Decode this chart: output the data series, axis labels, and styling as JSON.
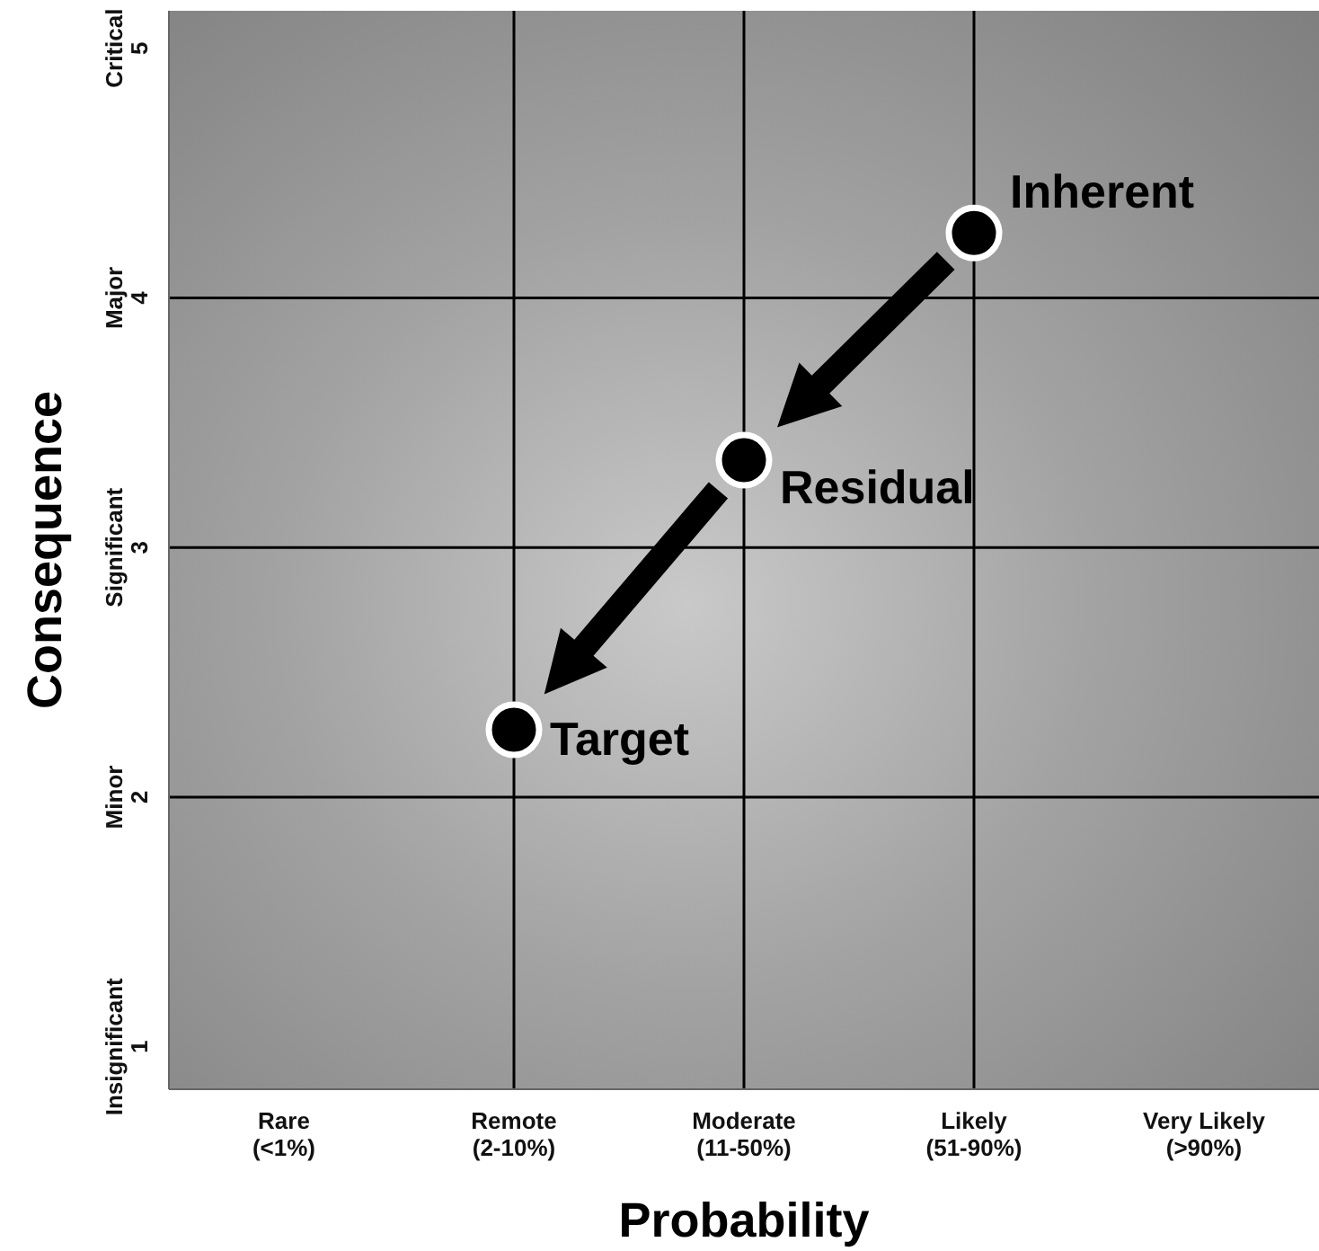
{
  "chart_data": {
    "type": "scatter",
    "xlabel": "Probability",
    "ylabel": "Consequence",
    "marker": "circle",
    "categories": [
      "Rare\n(<1%)",
      "Remote\n(2-10%)",
      "Moderate\n(11-50%)",
      "Likely\n(51-90%)",
      "Very Likely\n(>90%)"
    ],
    "ylim": [
      0.83,
      5.15
    ],
    "yticks": [
      1,
      2,
      3,
      4,
      5
    ],
    "annotations": [
      "Insignificant",
      "Minor",
      "Significant",
      "Major",
      "Critical"
    ],
    "series": [
      {
        "name": "Inherent",
        "color": "#000000",
        "x": [
          "Likely\n(51-90%)"
        ],
        "values": [
          4.26
        ]
      },
      {
        "name": "Residual",
        "color": "#000000",
        "x": [
          "Moderate\n(11-50%)"
        ],
        "values": [
          3.35
        ]
      },
      {
        "name": "Target",
        "color": "#000000",
        "x": [
          "Remote\n(2-10%)"
        ],
        "values": [
          2.27
        ]
      }
    ],
    "ref_lines": [
      {
        "axis": "x",
        "value": "Remote\n(2-10%)",
        "color": "#000000"
      },
      {
        "axis": "x",
        "value": "Moderate\n(11-50%)",
        "color": "#000000"
      },
      {
        "axis": "x",
        "value": "Likely\n(51-90%)",
        "color": "#000000"
      },
      {
        "axis": "y",
        "value": 2,
        "color": "#000000"
      },
      {
        "axis": "y",
        "value": 3,
        "color": "#000000"
      },
      {
        "axis": "y",
        "value": 4,
        "color": "#000000"
      }
    ]
  }
}
